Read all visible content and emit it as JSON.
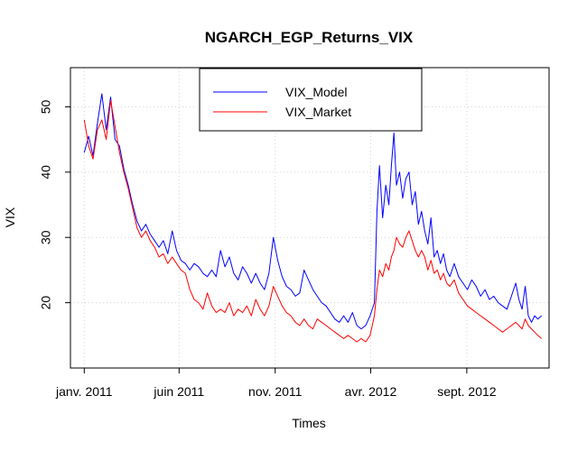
{
  "chart_data": {
    "type": "line",
    "title": "NGARCH_EGP_Returns_VIX",
    "xlabel": "Times",
    "ylabel": "VIX",
    "x_tick_labels": [
      "janv. 2011",
      "juin 2011",
      "nov. 2011",
      "avr. 2012",
      "sept. 2012"
    ],
    "x_tick_dates": [
      "2011-01-01",
      "2011-06-01",
      "2011-11-01",
      "2012-04-01",
      "2012-09-01"
    ],
    "y_ticks": [
      20,
      30,
      40,
      50
    ],
    "ylim": [
      10,
      56
    ],
    "xlim": [
      "2010-12-10",
      "2013-01-10"
    ],
    "grid": true,
    "legend_position": "top-center",
    "series": [
      {
        "name": "VIX_Model",
        "color": "#0000ff",
        "points": [
          [
            "2011-01-01",
            43
          ],
          [
            "2011-01-08",
            45.5
          ],
          [
            "2011-01-15",
            42.5
          ],
          [
            "2011-01-22",
            47.5
          ],
          [
            "2011-01-29",
            52
          ],
          [
            "2011-02-05",
            46.5
          ],
          [
            "2011-02-12",
            51.5
          ],
          [
            "2011-02-19",
            45
          ],
          [
            "2011-02-26",
            44
          ],
          [
            "2011-03-05",
            40.5
          ],
          [
            "2011-03-12",
            38
          ],
          [
            "2011-03-19",
            35
          ],
          [
            "2011-03-26",
            32.5
          ],
          [
            "2011-04-02",
            31
          ],
          [
            "2011-04-09",
            32
          ],
          [
            "2011-04-16",
            30.5
          ],
          [
            "2011-04-23",
            29.5
          ],
          [
            "2011-04-30",
            28.5
          ],
          [
            "2011-05-07",
            29.5
          ],
          [
            "2011-05-14",
            27.5
          ],
          [
            "2011-05-21",
            31
          ],
          [
            "2011-05-28",
            28
          ],
          [
            "2011-06-04",
            26.5
          ],
          [
            "2011-06-11",
            26
          ],
          [
            "2011-06-18",
            25
          ],
          [
            "2011-06-25",
            26
          ],
          [
            "2011-07-02",
            25.5
          ],
          [
            "2011-07-09",
            24.5
          ],
          [
            "2011-07-16",
            24
          ],
          [
            "2011-07-23",
            25
          ],
          [
            "2011-07-30",
            24
          ],
          [
            "2011-08-06",
            28
          ],
          [
            "2011-08-13",
            25.5
          ],
          [
            "2011-08-20",
            27
          ],
          [
            "2011-08-27",
            24.5
          ],
          [
            "2011-09-03",
            23.5
          ],
          [
            "2011-09-10",
            25.5
          ],
          [
            "2011-09-17",
            24.5
          ],
          [
            "2011-09-24",
            23
          ],
          [
            "2011-10-01",
            24.5
          ],
          [
            "2011-10-08",
            23
          ],
          [
            "2011-10-15",
            22
          ],
          [
            "2011-10-22",
            24.5
          ],
          [
            "2011-10-29",
            30
          ],
          [
            "2011-11-05",
            26.5
          ],
          [
            "2011-11-12",
            24
          ],
          [
            "2011-11-19",
            22.5
          ],
          [
            "2011-11-26",
            22
          ],
          [
            "2011-12-03",
            21
          ],
          [
            "2011-12-10",
            21.5
          ],
          [
            "2011-12-17",
            25
          ],
          [
            "2011-12-24",
            23.5
          ],
          [
            "2011-12-31",
            22
          ],
          [
            "2012-01-07",
            21
          ],
          [
            "2012-01-14",
            20
          ],
          [
            "2012-01-21",
            19.5
          ],
          [
            "2012-01-28",
            18.5
          ],
          [
            "2012-02-04",
            17.5
          ],
          [
            "2012-02-11",
            17
          ],
          [
            "2012-02-18",
            18
          ],
          [
            "2012-02-25",
            17
          ],
          [
            "2012-03-03",
            18.5
          ],
          [
            "2012-03-10",
            16.5
          ],
          [
            "2012-03-17",
            16
          ],
          [
            "2012-03-24",
            16.5
          ],
          [
            "2012-03-31",
            18
          ],
          [
            "2012-04-07",
            20
          ],
          [
            "2012-04-11",
            34
          ],
          [
            "2012-04-15",
            41
          ],
          [
            "2012-04-20",
            33
          ],
          [
            "2012-04-25",
            38
          ],
          [
            "2012-04-30",
            35
          ],
          [
            "2012-05-04",
            41
          ],
          [
            "2012-05-08",
            46
          ],
          [
            "2012-05-12",
            38
          ],
          [
            "2012-05-17",
            40
          ],
          [
            "2012-05-22",
            36
          ],
          [
            "2012-05-27",
            39
          ],
          [
            "2012-06-01",
            40
          ],
          [
            "2012-06-06",
            35
          ],
          [
            "2012-06-11",
            37
          ],
          [
            "2012-06-16",
            32
          ],
          [
            "2012-06-21",
            34
          ],
          [
            "2012-06-26",
            31
          ],
          [
            "2012-07-01",
            29
          ],
          [
            "2012-07-06",
            33
          ],
          [
            "2012-07-11",
            27
          ],
          [
            "2012-07-16",
            28
          ],
          [
            "2012-07-21",
            26
          ],
          [
            "2012-07-26",
            27.5
          ],
          [
            "2012-07-31",
            25
          ],
          [
            "2012-08-05",
            24
          ],
          [
            "2012-08-12",
            26
          ],
          [
            "2012-08-19",
            24
          ],
          [
            "2012-08-26",
            23
          ],
          [
            "2012-09-02",
            22
          ],
          [
            "2012-09-09",
            23.5
          ],
          [
            "2012-09-16",
            22.5
          ],
          [
            "2012-09-23",
            21
          ],
          [
            "2012-09-30",
            22
          ],
          [
            "2012-10-07",
            20.5
          ],
          [
            "2012-10-14",
            21
          ],
          [
            "2012-10-21",
            20
          ],
          [
            "2012-10-28",
            19.5
          ],
          [
            "2012-11-04",
            19
          ],
          [
            "2012-11-11",
            21
          ],
          [
            "2012-11-18",
            23
          ],
          [
            "2012-11-23",
            20.5
          ],
          [
            "2012-11-28",
            19
          ],
          [
            "2012-12-03",
            22.5
          ],
          [
            "2012-12-08",
            18
          ],
          [
            "2012-12-13",
            17
          ],
          [
            "2012-12-18",
            18
          ],
          [
            "2012-12-23",
            17.5
          ],
          [
            "2012-12-29",
            18
          ]
        ]
      },
      {
        "name": "VIX_Market",
        "color": "#ff0000",
        "points": [
          [
            "2011-01-01",
            48
          ],
          [
            "2011-01-08",
            44
          ],
          [
            "2011-01-15",
            42
          ],
          [
            "2011-01-22",
            46.5
          ],
          [
            "2011-01-29",
            48
          ],
          [
            "2011-02-05",
            45
          ],
          [
            "2011-02-12",
            51
          ],
          [
            "2011-02-19",
            47
          ],
          [
            "2011-02-26",
            43
          ],
          [
            "2011-03-05",
            40
          ],
          [
            "2011-03-12",
            37.5
          ],
          [
            "2011-03-19",
            34.5
          ],
          [
            "2011-03-26",
            31.5
          ],
          [
            "2011-04-02",
            30
          ],
          [
            "2011-04-09",
            31
          ],
          [
            "2011-04-16",
            29.5
          ],
          [
            "2011-04-23",
            28.5
          ],
          [
            "2011-04-30",
            27
          ],
          [
            "2011-05-07",
            27.5
          ],
          [
            "2011-05-14",
            26
          ],
          [
            "2011-05-21",
            27
          ],
          [
            "2011-05-28",
            26
          ],
          [
            "2011-06-04",
            25
          ],
          [
            "2011-06-11",
            24.5
          ],
          [
            "2011-06-18",
            22
          ],
          [
            "2011-06-25",
            20.5
          ],
          [
            "2011-07-02",
            20
          ],
          [
            "2011-07-09",
            19
          ],
          [
            "2011-07-16",
            21.5
          ],
          [
            "2011-07-23",
            19.5
          ],
          [
            "2011-07-30",
            18.5
          ],
          [
            "2011-08-06",
            19
          ],
          [
            "2011-08-13",
            18.5
          ],
          [
            "2011-08-20",
            20
          ],
          [
            "2011-08-27",
            18
          ],
          [
            "2011-09-03",
            19
          ],
          [
            "2011-09-10",
            18.5
          ],
          [
            "2011-09-17",
            19.5
          ],
          [
            "2011-09-24",
            18
          ],
          [
            "2011-10-01",
            20.5
          ],
          [
            "2011-10-08",
            19
          ],
          [
            "2011-10-15",
            18
          ],
          [
            "2011-10-22",
            19.5
          ],
          [
            "2011-10-29",
            22.5
          ],
          [
            "2011-11-05",
            21
          ],
          [
            "2011-11-12",
            19.5
          ],
          [
            "2011-11-19",
            18.5
          ],
          [
            "2011-11-26",
            18
          ],
          [
            "2011-12-03",
            17
          ],
          [
            "2011-12-10",
            16.5
          ],
          [
            "2011-12-17",
            17.5
          ],
          [
            "2011-12-24",
            16.5
          ],
          [
            "2011-12-31",
            16
          ],
          [
            "2012-01-07",
            17.5
          ],
          [
            "2012-01-14",
            17
          ],
          [
            "2012-01-21",
            16.5
          ],
          [
            "2012-01-28",
            16
          ],
          [
            "2012-02-04",
            15.5
          ],
          [
            "2012-02-11",
            15
          ],
          [
            "2012-02-18",
            14.5
          ],
          [
            "2012-02-25",
            15
          ],
          [
            "2012-03-03",
            14.5
          ],
          [
            "2012-03-10",
            14
          ],
          [
            "2012-03-17",
            14.5
          ],
          [
            "2012-03-24",
            14
          ],
          [
            "2012-03-31",
            15
          ],
          [
            "2012-04-07",
            18
          ],
          [
            "2012-04-11",
            22
          ],
          [
            "2012-04-15",
            25
          ],
          [
            "2012-04-20",
            24
          ],
          [
            "2012-04-25",
            26
          ],
          [
            "2012-04-30",
            25
          ],
          [
            "2012-05-04",
            27
          ],
          [
            "2012-05-08",
            28
          ],
          [
            "2012-05-12",
            30
          ],
          [
            "2012-05-17",
            29
          ],
          [
            "2012-05-22",
            28.5
          ],
          [
            "2012-05-27",
            30
          ],
          [
            "2012-06-01",
            31
          ],
          [
            "2012-06-06",
            29.5
          ],
          [
            "2012-06-11",
            28
          ],
          [
            "2012-06-16",
            27
          ],
          [
            "2012-06-21",
            28
          ],
          [
            "2012-06-26",
            27
          ],
          [
            "2012-07-01",
            25
          ],
          [
            "2012-07-06",
            26.5
          ],
          [
            "2012-07-11",
            24.5
          ],
          [
            "2012-07-16",
            25
          ],
          [
            "2012-07-21",
            23.5
          ],
          [
            "2012-07-26",
            24.5
          ],
          [
            "2012-07-31",
            23
          ],
          [
            "2012-08-05",
            22.5
          ],
          [
            "2012-08-12",
            23.5
          ],
          [
            "2012-08-19",
            21.5
          ],
          [
            "2012-08-26",
            20.5
          ],
          [
            "2012-09-02",
            19.5
          ],
          [
            "2012-09-09",
            19
          ],
          [
            "2012-09-16",
            18.5
          ],
          [
            "2012-09-23",
            18
          ],
          [
            "2012-09-30",
            17.5
          ],
          [
            "2012-10-07",
            17
          ],
          [
            "2012-10-14",
            16.5
          ],
          [
            "2012-10-21",
            16
          ],
          [
            "2012-10-28",
            15.5
          ],
          [
            "2012-11-04",
            16
          ],
          [
            "2012-11-11",
            16.5
          ],
          [
            "2012-11-18",
            17
          ],
          [
            "2012-11-23",
            16.5
          ],
          [
            "2012-11-28",
            16
          ],
          [
            "2012-12-03",
            17.5
          ],
          [
            "2012-12-08",
            16.5
          ],
          [
            "2012-12-13",
            16
          ],
          [
            "2012-12-18",
            15.5
          ],
          [
            "2012-12-23",
            15
          ],
          [
            "2012-12-29",
            14.5
          ]
        ]
      }
    ]
  }
}
